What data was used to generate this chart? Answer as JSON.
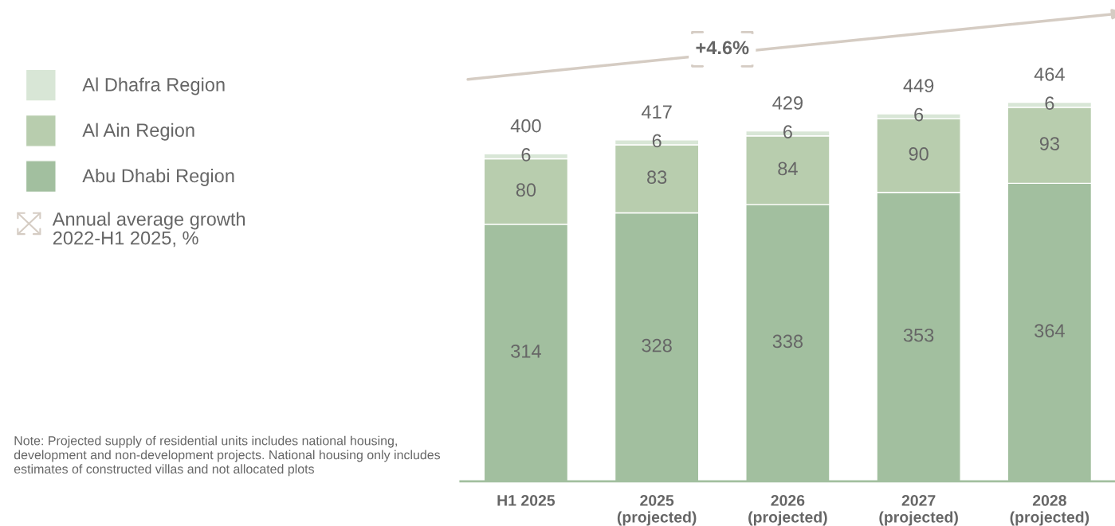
{
  "chart_data": {
    "type": "bar",
    "stacked": true,
    "categories": [
      "H1 2025",
      "2025\n(projected)",
      "2026\n(projected)",
      "2027\n(projected)",
      "2028\n(projected)"
    ],
    "series": [
      {
        "name": "Abu Dhabi Region",
        "color": "#a2bf9f",
        "values": [
          314,
          328,
          338,
          353,
          364
        ]
      },
      {
        "name": "Al Ain Region",
        "color": "#b8cdae",
        "values": [
          80,
          83,
          84,
          90,
          93
        ]
      },
      {
        "name": "Al Dhafra Region",
        "color": "#d8e6d6",
        "values": [
          6,
          6,
          6,
          6,
          6
        ]
      }
    ],
    "data_labels": true,
    "totals": [
      "400",
      "417",
      "429",
      "449",
      "464"
    ],
    "legend": "left",
    "grid": false,
    "annotations": [
      "+4.6%",
      "Annual average growth\n2022-H1 2025, %",
      "Note: Projected supply of residential units includes national housing, development and non-development projects. National housing only includes estimates of constructed villas and not allocated plots"
    ]
  }
}
